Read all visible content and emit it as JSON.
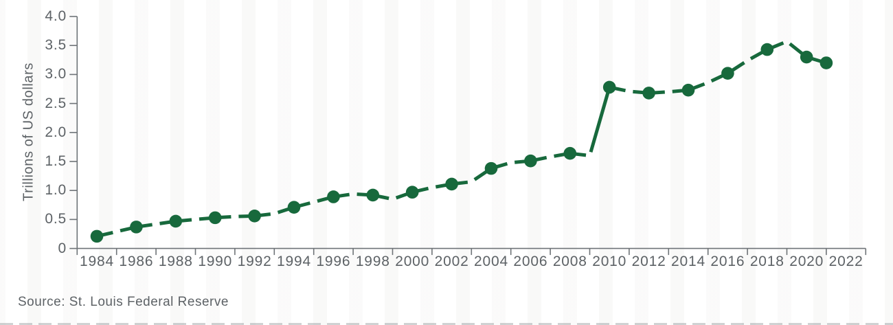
{
  "chart_data": {
    "type": "line",
    "title": "",
    "xlabel": "",
    "ylabel": "Trillions of US dollars",
    "xlim": [
      1983,
      2023
    ],
    "ylim": [
      0,
      4.0
    ],
    "grid": false,
    "legend_position": "none",
    "x_tick_labels": [
      "1984",
      "1986",
      "1988",
      "1990",
      "1992",
      "1994",
      "1996",
      "1998",
      "2000",
      "2002",
      "2004",
      "2006",
      "2008",
      "2010",
      "2012",
      "2014",
      "2016",
      "2018",
      "2020",
      "2022"
    ],
    "x_tick_label_years": [
      1984,
      1986,
      1988,
      1990,
      1992,
      1994,
      1996,
      1998,
      2000,
      2002,
      2004,
      2006,
      2008,
      2010,
      2012,
      2014,
      2016,
      2018,
      2020,
      2022
    ],
    "x_tick_mark_years": [
      1983,
      1985,
      1987,
      1989,
      1991,
      1993,
      1995,
      1997,
      1999,
      2001,
      2003,
      2005,
      2007,
      2009,
      2011,
      2013,
      2015,
      2017,
      2019,
      2021,
      2023
    ],
    "y_tick_labels": [
      "0",
      "0.5",
      "1.0",
      "1.5",
      "2.0",
      "2.5",
      "3.0",
      "3.5",
      "4.0"
    ],
    "y_tick_values": [
      0,
      0.5,
      1.0,
      1.5,
      2.0,
      2.5,
      3.0,
      3.5,
      4.0
    ],
    "series": [
      {
        "name": "Trillions of US dollars",
        "color": "#17693c",
        "line_style": "dashed",
        "x": [
          1984,
          1985,
          1986,
          1987,
          1988,
          1989,
          1990,
          1991,
          1992,
          1993,
          1994,
          1995,
          1996,
          1997,
          1998,
          1999,
          2000,
          2001,
          2002,
          2003,
          2004,
          2005,
          2006,
          2007,
          2008,
          2009,
          2010,
          2011,
          2012,
          2013,
          2014,
          2015,
          2016,
          2017,
          2018,
          2019,
          2020,
          2021
        ],
        "values": [
          0.21,
          0.29,
          0.37,
          0.42,
          0.47,
          0.5,
          0.53,
          0.55,
          0.56,
          0.6,
          0.71,
          0.8,
          0.89,
          0.94,
          0.92,
          0.85,
          0.97,
          1.05,
          1.11,
          1.15,
          1.38,
          1.48,
          1.51,
          1.58,
          1.64,
          1.6,
          2.78,
          2.71,
          2.68,
          2.7,
          2.73,
          2.86,
          3.02,
          3.24,
          3.43,
          3.57,
          3.3,
          3.2
        ],
        "marker_years": [
          1984,
          1986,
          1988,
          1990,
          1992,
          1994,
          1996,
          1998,
          2000,
          2002,
          2004,
          2006,
          2008,
          2010,
          2012,
          2014,
          2016,
          2018,
          2020,
          2021
        ]
      }
    ]
  },
  "source": {
    "label": "Source: St. Louis Federal Reserve"
  },
  "colors": {
    "line": "#17693c",
    "marker": "#17693c",
    "axis": "#6e7377",
    "tick_text": "#5d6266",
    "background": "#ffffff"
  }
}
